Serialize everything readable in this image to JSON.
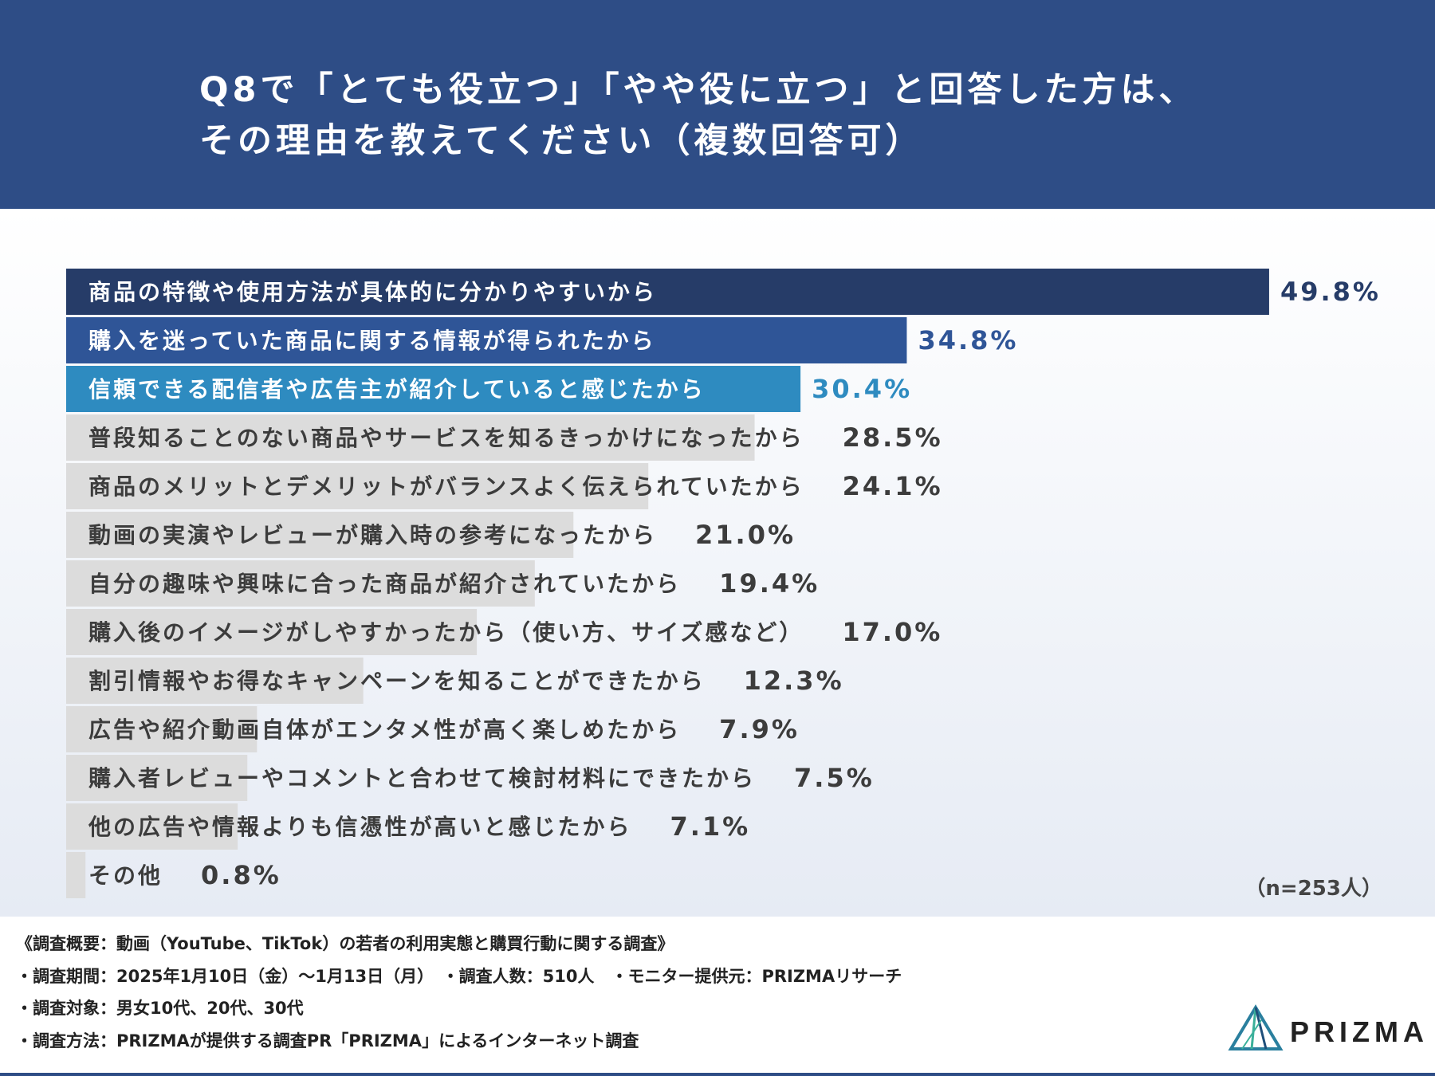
{
  "header": {
    "title_line1": "Q8で「とても役立つ」「やや役に立つ」と回答した方は、",
    "title_line2": "その理由を教えてください（複数回答可）",
    "background": "#2e4d86"
  },
  "chart_data": {
    "type": "bar",
    "orientation": "horizontal",
    "categories": [
      "商品の特徴や使用方法が具体的に分かりやすいから",
      "購入を迷っていた商品に関する情報が得られたから",
      "信頼できる配信者や広告主が紹介していると感じたから",
      "普段知ることのない商品やサービスを知るきっかけになったから",
      "商品のメリットとデメリットがバランスよく伝えられていたから",
      "動画の実演やレビューが購入時の参考になったから",
      "自分の趣味や興味に合った商品が紹介されていたから",
      "購入後のイメージがしやすかったから（使い方、サイズ感など）",
      "割引情報やお得なキャンペーンを知ることができたから",
      "広告や紹介動画自体がエンタメ性が高く楽しめたから",
      "購入者レビューやコメントと合わせて検討材料にできたから",
      "他の広告や情報よりも信憑性が高いと感じたから",
      "その他"
    ],
    "values": [
      49.8,
      34.8,
      30.4,
      28.5,
      24.1,
      21.0,
      19.4,
      17.0,
      12.3,
      7.9,
      7.5,
      7.1,
      0.8
    ],
    "value_labels": [
      "49.8%",
      "34.8%",
      "30.4%",
      "28.5%",
      "24.1%",
      "21.0%",
      "19.4%",
      "17.0%",
      "12.3%",
      "7.9%",
      "7.5%",
      "7.1%",
      "0.8%"
    ],
    "xlim": [
      0,
      50
    ],
    "unit": "%",
    "grid": false,
    "colors": {
      "top1": "#263c68",
      "top2": "#2f5597",
      "top3": "#2e8bc0",
      "other": "#dcdcdc",
      "top1_value": "#263c68",
      "top2_value": "#2f5597",
      "top3_value": "#2e8bc0",
      "other_value": "#3c3c3c",
      "label_dark": "#3c3c3c",
      "label_light": "#ffffff"
    }
  },
  "sample_note": "（n=253人）",
  "footer": {
    "line1": "《調査概要：動画（YouTube、TikTok）の若者の利用実態と購買行動に関する調査》",
    "line2": "・調査期間：2025年1月10日（金）〜1月13日（月）　・調査人数：510人　・モニター提供元：PRIZMAリサーチ",
    "line3": "・調査対象：男女10代、20代、30代",
    "line4": "・調査方法：PRIZMAが提供する調査PR「PRIZMA」によるインターネット調査"
  },
  "logo": {
    "text": "PRIZMA",
    "icon": "prizma-triangle-logo",
    "colors": [
      "#2a7f9e",
      "#3bb09a",
      "#1f4f7a"
    ]
  }
}
